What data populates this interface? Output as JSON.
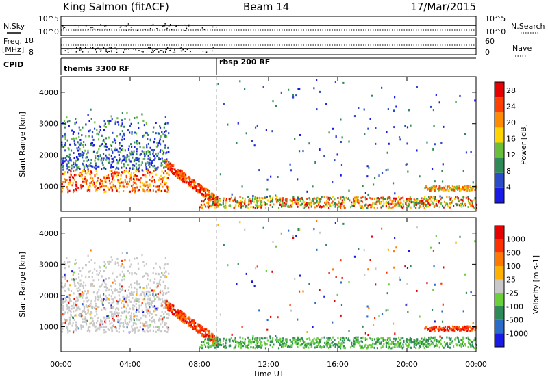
{
  "header": {
    "station": "King Salmon (fitACF)",
    "beam": "Beam 14",
    "date": "17/Mar/2015"
  },
  "strip_labels": {
    "nsky": "N.Sky",
    "nsearch": "N.Search",
    "freq_line1": "Freq.",
    "freq_line2": "[MHz]",
    "nave": "Nave",
    "cpid": "CPID"
  },
  "strip_ticks": {
    "noise_left": [
      "10^5",
      "10^0"
    ],
    "noise_right": [
      "10^5",
      "10^0"
    ],
    "freq_left": [
      "18",
      "8"
    ],
    "nave_right": [
      "60",
      "0"
    ]
  },
  "cpid_segments": [
    {
      "label": "themis 3300 RF",
      "start_hour": 0,
      "end_hour": 9
    },
    {
      "label": "rbsp 200 RF",
      "start_hour": 9,
      "end_hour": 24
    }
  ],
  "chart_data": [
    {
      "type": "heatmap",
      "title": "",
      "xlabel": "",
      "ylabel": "Slant Range [km]",
      "colorbar_label": "Power [dB]",
      "x_ticks": [
        "00:00",
        "04:00",
        "08:00",
        "12:00",
        "16:00",
        "20:00",
        "00:00"
      ],
      "xlim_hours": [
        0,
        24
      ],
      "y_ticks": [
        1000,
        2000,
        3000,
        4000
      ],
      "ylim": [
        200,
        4500
      ],
      "colorbar_ticks": [
        4,
        8,
        12,
        16,
        20,
        24,
        28
      ],
      "colorbar_range": [
        0,
        30
      ],
      "colorbar_colors": [
        "#1a1ae6",
        "#2a4cc8",
        "#2e8b57",
        "#6abf3a",
        "#ffd400",
        "#ff8c00",
        "#ff4000",
        "#e60000"
      ],
      "dashed_marker_hour": 9
    },
    {
      "type": "heatmap",
      "title": "",
      "xlabel": "Time UT",
      "ylabel": "Slant Range [km]",
      "colorbar_label": "Velocity [m s-1]",
      "x_ticks": [
        "00:00",
        "04:00",
        "08:00",
        "12:00",
        "16:00",
        "20:00",
        "00:00"
      ],
      "xlim_hours": [
        0,
        24
      ],
      "y_ticks": [
        1000,
        2000,
        3000,
        4000
      ],
      "ylim": [
        200,
        4500
      ],
      "colorbar_ticks": [
        "1000",
        "500",
        "100",
        "25",
        "-25",
        "-100",
        "-500",
        "-1000"
      ],
      "colorbar_colors": [
        "#1a1ae6",
        "#2a6cc8",
        "#2e8b57",
        "#6ad03a",
        "#c8c8c8",
        "#ffb000",
        "#ff7800",
        "#ff3000",
        "#e60000"
      ],
      "dashed_marker_hour": 9
    }
  ]
}
